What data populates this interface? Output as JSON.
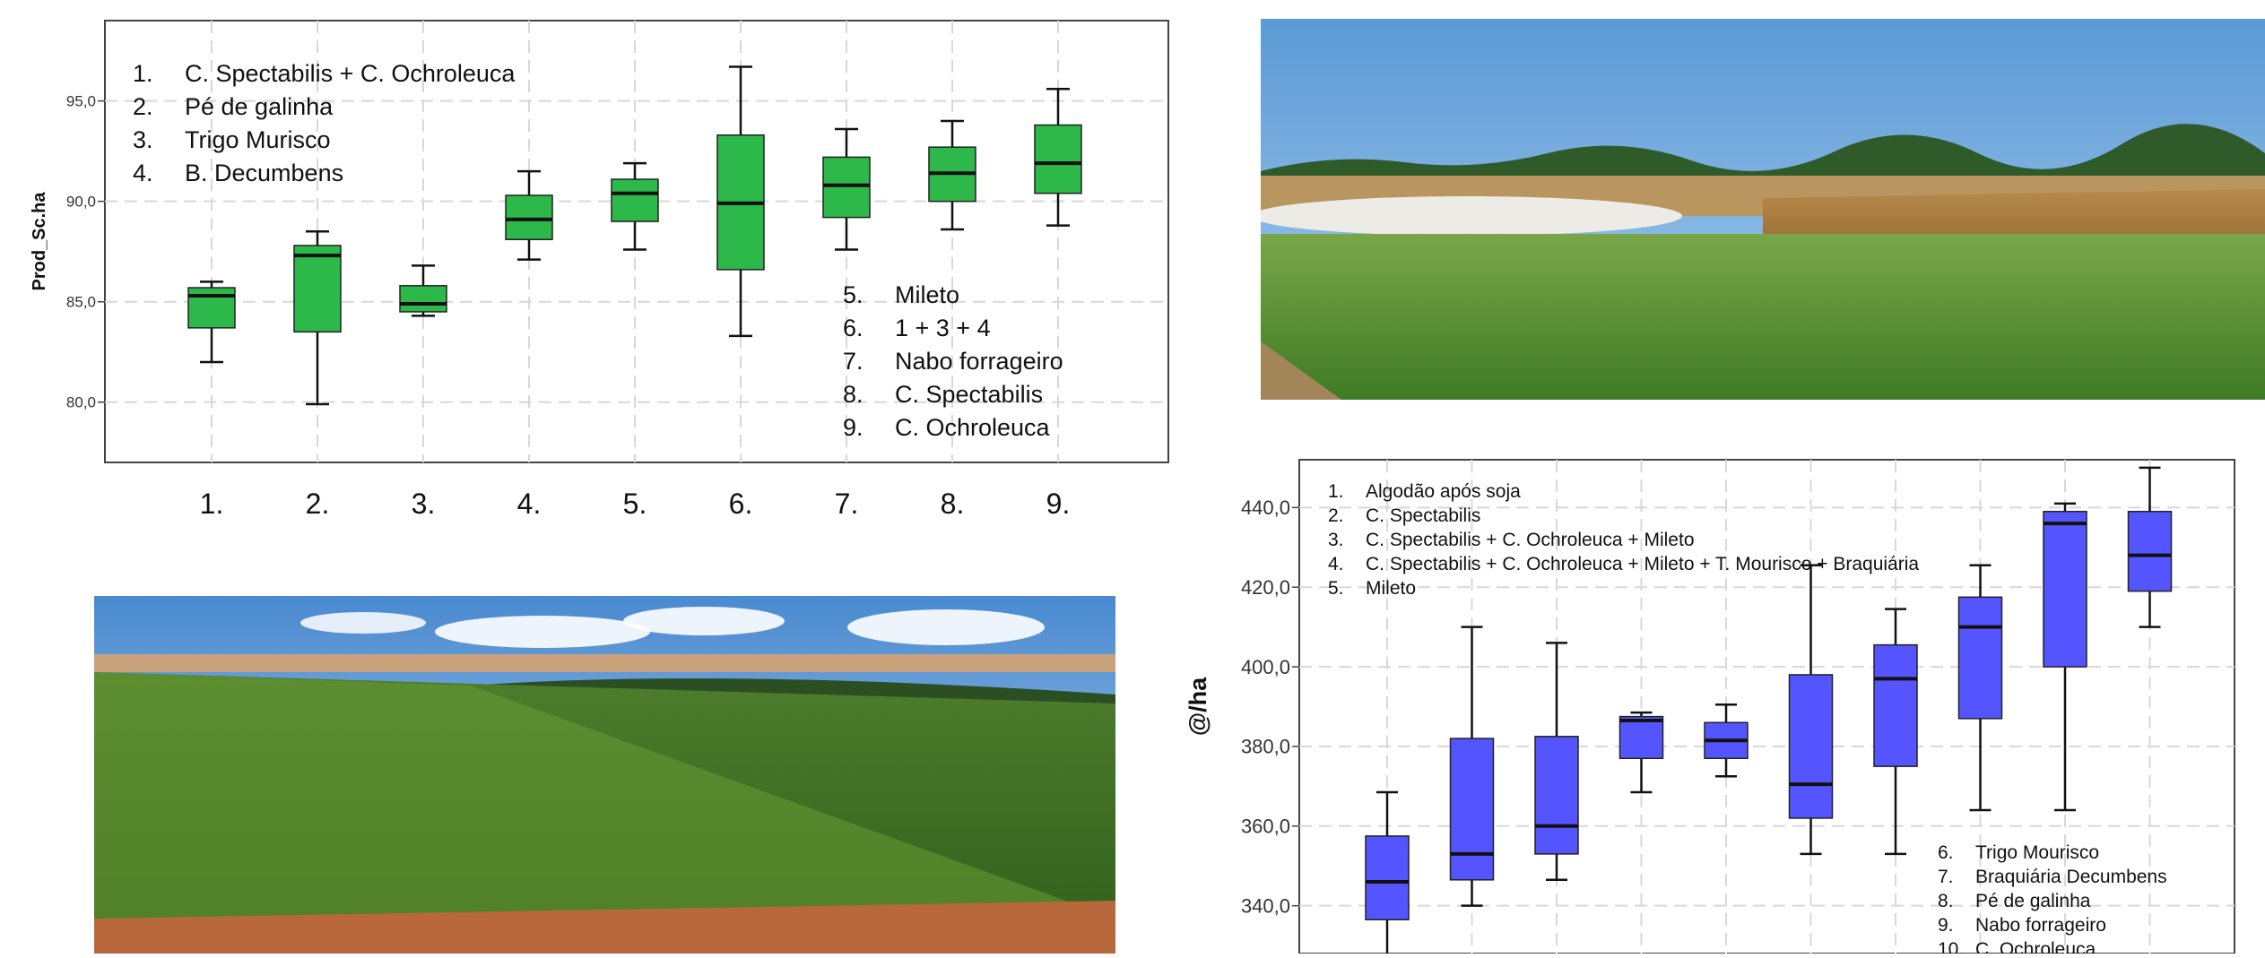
{
  "chart_data": [
    {
      "type": "boxplot",
      "title": "",
      "ylabel": "Prod_Sc.ha",
      "xlabel": "",
      "ylim": [
        77.0,
        99.0
      ],
      "grid": true,
      "yticks": [
        80.0,
        85.0,
        90.0,
        95.0
      ],
      "ytick_labels": [
        "80,0",
        "85,0",
        "90,0",
        "95,0"
      ],
      "categories": [
        "1.",
        "2.",
        "3.",
        "4.",
        "5.",
        "6.",
        "7.",
        "8.",
        "9."
      ],
      "box_color": "#2db84a",
      "boxes": [
        {
          "min": 82.0,
          "q1": 83.7,
          "median": 85.3,
          "q3": 85.7,
          "max": 86.0
        },
        {
          "min": 79.9,
          "q1": 83.5,
          "median": 87.3,
          "q3": 87.8,
          "max": 88.5
        },
        {
          "min": 84.3,
          "q1": 84.5,
          "median": 84.9,
          "q3": 85.8,
          "max": 86.8
        },
        {
          "min": 87.1,
          "q1": 88.1,
          "median": 89.1,
          "q3": 90.3,
          "max": 91.5
        },
        {
          "min": 87.6,
          "q1": 89.0,
          "median": 90.4,
          "q3": 91.1,
          "max": 91.9
        },
        {
          "min": 83.3,
          "q1": 86.6,
          "median": 89.9,
          "q3": 93.3,
          "max": 96.7
        },
        {
          "min": 87.6,
          "q1": 89.2,
          "median": 90.8,
          "q3": 92.2,
          "max": 93.6
        },
        {
          "min": 88.6,
          "q1": 90.0,
          "median": 91.4,
          "q3": 92.7,
          "max": 94.0
        },
        {
          "min": 88.8,
          "q1": 90.4,
          "median": 91.9,
          "q3": 93.8,
          "max": 95.6
        }
      ],
      "legend_top": [
        {
          "num": "1.",
          "label": "C. Spectabilis + C. Ochroleuca"
        },
        {
          "num": "2.",
          "label": "Pé de galinha"
        },
        {
          "num": "3.",
          "label": "Trigo Murisco"
        },
        {
          "num": "4.",
          "label": "B. Decumbens"
        }
      ],
      "legend_bottom": [
        {
          "num": "5.",
          "label": "Mileto"
        },
        {
          "num": "6.",
          "label": "1 + 3 + 4"
        },
        {
          "num": "7.",
          "label": "Nabo forrageiro"
        },
        {
          "num": "8.",
          "label": "C. Spectabilis"
        },
        {
          "num": "9.",
          "label": "C. Ochroleuca"
        }
      ]
    },
    {
      "type": "boxplot",
      "title": "",
      "ylabel": "@/ha",
      "xlabel": "",
      "ylim": [
        328.0,
        452.0
      ],
      "grid": true,
      "yticks": [
        340.0,
        360.0,
        380.0,
        400.0,
        420.0,
        440.0
      ],
      "ytick_labels": [
        "340,0",
        "360,0",
        "380,0",
        "400,0",
        "420,0",
        "440,0"
      ],
      "box_color": "#5555ff",
      "boxes": [
        {
          "min": 327.0,
          "q1": 336.5,
          "median": 346.0,
          "q3": 357.5,
          "max": 368.5
        },
        {
          "min": 340.0,
          "q1": 346.5,
          "median": 353.0,
          "q3": 382.0,
          "max": 410.0
        },
        {
          "min": 346.5,
          "q1": 353.0,
          "median": 360.0,
          "q3": 382.5,
          "max": 406.0
        },
        {
          "min": 368.5,
          "q1": 377.0,
          "median": 386.5,
          "q3": 387.5,
          "max": 388.5
        },
        {
          "min": 372.5,
          "q1": 377.0,
          "median": 381.5,
          "q3": 386.0,
          "max": 390.5
        },
        {
          "min": 353.0,
          "q1": 362.0,
          "median": 370.5,
          "q3": 398.0,
          "max": 425.5
        },
        {
          "min": 353.0,
          "q1": 375.0,
          "median": 397.0,
          "q3": 405.5,
          "max": 414.5
        },
        {
          "min": 364.0,
          "q1": 387.0,
          "median": 410.0,
          "q3": 417.5,
          "max": 425.5
        },
        {
          "min": 364.0,
          "q1": 400.0,
          "median": 436.0,
          "q3": 439.0,
          "max": 441.0
        },
        {
          "min": 410.0,
          "q1": 419.0,
          "median": 428.0,
          "q3": 439.0,
          "max": 450.0
        }
      ],
      "legend_top": [
        {
          "num": "1.",
          "label": "Algodão após soja"
        },
        {
          "num": "2.",
          "label": "C. Spectabilis"
        },
        {
          "num": "3.",
          "label": "C. Spectabilis + C. Ochroleuca + Mileto"
        },
        {
          "num": "4.",
          "label": "C. Spectabilis + C. Ochroleuca + Mileto + T. Mourisco + Braquiária"
        },
        {
          "num": "5.",
          "label": "Mileto"
        }
      ],
      "legend_bottom": [
        {
          "num": "6.",
          "label": "Trigo Mourisco"
        },
        {
          "num": "7.",
          "label": "Braquiária Decumbens"
        },
        {
          "num": "8.",
          "label": "Pé de galinha"
        },
        {
          "num": "9.",
          "label": "Nabo forrageiro"
        },
        {
          "num": "10.",
          "label": "C. Ochroleuca"
        }
      ]
    }
  ]
}
